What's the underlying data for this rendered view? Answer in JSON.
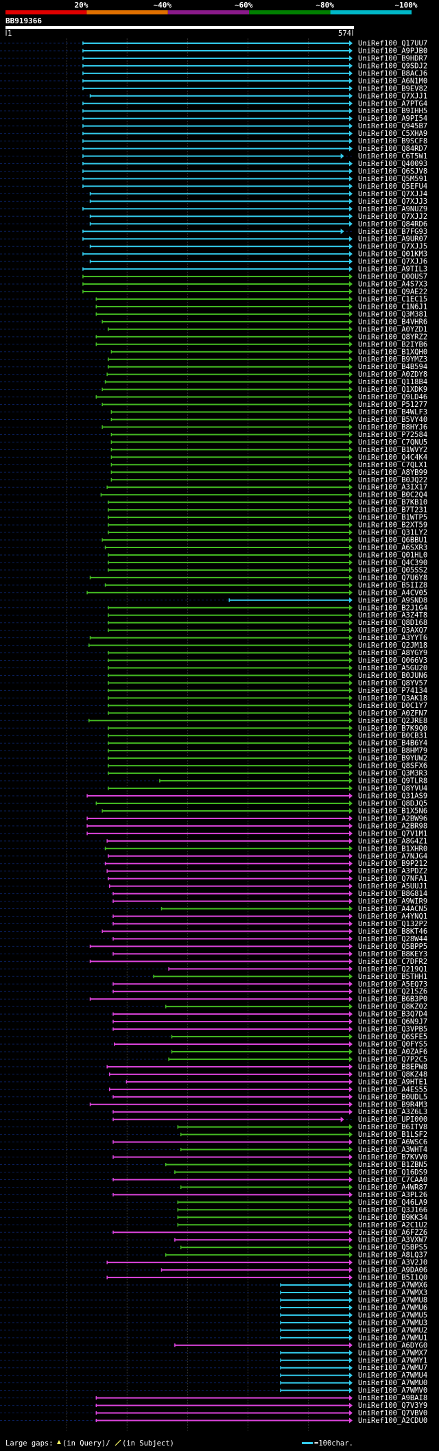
{
  "chart_data": {
    "type": "alignment-overview",
    "title": "BB919366",
    "query_start_label": "1",
    "query_end_label": "574",
    "query_length": 574,
    "identity_scale": [
      {
        "label": "20%",
        "color": "#e00000"
      },
      {
        "label": "~40%",
        "color": "#e07000"
      },
      {
        "label": "~60%",
        "color": "#8a1a8a"
      },
      {
        "label": "~80%",
        "color": "#008000"
      },
      {
        "label": "~100%",
        "color": "#00b8c8"
      }
    ],
    "series_colors": {
      "cyan": "#33ccee",
      "green": "#44bb22",
      "magenta": "#dd44dd"
    },
    "footer": {
      "gaps_label": "Large gaps:",
      "in_query_label": "(in Query)/",
      "in_subject_label": "(in Subject)",
      "scale_label": "=100char."
    },
    "hits": [
      [
        "UniRef100_Q17UU7",
        128,
        574,
        "c"
      ],
      [
        "UniRef100_A9PJB0",
        128,
        574,
        "c"
      ],
      [
        "UniRef100_B9HDR7",
        128,
        574,
        "c"
      ],
      [
        "UniRef100_Q9SDJ2",
        128,
        574,
        "c"
      ],
      [
        "UniRef100_B8ACJ6",
        128,
        574,
        "c"
      ],
      [
        "UniRef100_A6N1M0",
        128,
        574,
        "c"
      ],
      [
        "UniRef100_B9EV82",
        128,
        574,
        "c"
      ],
      [
        "UniRef100_Q7XJJ1",
        140,
        574,
        "c"
      ],
      [
        "UniRef100_A7PTG4",
        128,
        574,
        "c"
      ],
      [
        "UniRef100_B9IHH5",
        128,
        574,
        "c"
      ],
      [
        "UniRef100_A9PI54",
        128,
        574,
        "c"
      ],
      [
        "UniRef100_Q945B7",
        128,
        574,
        "c"
      ],
      [
        "UniRef100_C5XHA9",
        128,
        574,
        "c"
      ],
      [
        "UniRef100_B9SCF8",
        128,
        574,
        "c"
      ],
      [
        "UniRef100_Q84RD7",
        128,
        574,
        "c"
      ],
      [
        "UniRef100_C6T5W1",
        128,
        560,
        "c"
      ],
      [
        "UniRef100_Q40093",
        128,
        574,
        "c"
      ],
      [
        "UniRef100_Q6SJV8",
        128,
        574,
        "c"
      ],
      [
        "UniRef100_Q5M591",
        128,
        574,
        "c"
      ],
      [
        "UniRef100_Q5EFU4",
        128,
        574,
        "c"
      ],
      [
        "UniRef100_Q7XJJ4",
        140,
        574,
        "c"
      ],
      [
        "UniRef100_Q7XJJ3",
        140,
        574,
        "c"
      ],
      [
        "UniRef100_A9NUZ9",
        128,
        574,
        "c"
      ],
      [
        "UniRef100_Q7XJJ2",
        140,
        574,
        "c"
      ],
      [
        "UniRef100_Q84RD6",
        140,
        574,
        "c"
      ],
      [
        "UniRef100_B7FG93",
        128,
        560,
        "c"
      ],
      [
        "UniRef100_A9UR07",
        128,
        574,
        "c"
      ],
      [
        "UniRef100_Q7XJJ5",
        140,
        574,
        "c"
      ],
      [
        "UniRef100_Q01KM3",
        128,
        574,
        "c"
      ],
      [
        "UniRef100_Q7XJJ6",
        140,
        574,
        "c"
      ],
      [
        "UniRef100_A9TIL3",
        128,
        574,
        "c"
      ],
      [
        "UniRef100_Q0OUS7",
        128,
        574,
        "g"
      ],
      [
        "UniRef100_A4S7X3",
        128,
        574,
        "g"
      ],
      [
        "UniRef100_Q9AE22",
        128,
        574,
        "g"
      ],
      [
        "UniRef100_C1EC15",
        150,
        574,
        "g"
      ],
      [
        "UniRef100_C1N6J1",
        150,
        574,
        "g"
      ],
      [
        "UniRef100_Q3M381",
        150,
        574,
        "g"
      ],
      [
        "UniRef100_B4VHR6",
        160,
        574,
        "g"
      ],
      [
        "UniRef100_A0YZD1",
        170,
        574,
        "g"
      ],
      [
        "UniRef100_Q8YRZ2",
        150,
        574,
        "g"
      ],
      [
        "UniRef100_B2IYB6",
        150,
        574,
        "g"
      ],
      [
        "UniRef100_B1XQH0",
        175,
        574,
        "g"
      ],
      [
        "UniRef100_B9YMZ3",
        170,
        574,
        "g"
      ],
      [
        "UniRef100_B4B594",
        170,
        574,
        "g"
      ],
      [
        "UniRef100_A0ZDY8",
        168,
        574,
        "g"
      ],
      [
        "UniRef100_Q118B4",
        165,
        574,
        "g"
      ],
      [
        "UniRef100_Q1XDK9",
        160,
        574,
        "g"
      ],
      [
        "UniRef100_Q9LD46",
        150,
        574,
        "g"
      ],
      [
        "UniRef100_P51277",
        160,
        574,
        "g"
      ],
      [
        "UniRef100_B4WLF3",
        175,
        574,
        "g"
      ],
      [
        "UniRef100_B5VY40",
        175,
        574,
        "g"
      ],
      [
        "UniRef100_B8HYJ6",
        160,
        574,
        "g"
      ],
      [
        "UniRef100_P72584",
        175,
        574,
        "g"
      ],
      [
        "UniRef100_C7QNU5",
        175,
        574,
        "g"
      ],
      [
        "UniRef100_B1WVY2",
        175,
        574,
        "g"
      ],
      [
        "UniRef100_Q4C4K4",
        175,
        574,
        "g"
      ],
      [
        "UniRef100_C7QLX1",
        175,
        574,
        "g"
      ],
      [
        "UniRef100_A8YB99",
        175,
        574,
        "g"
      ],
      [
        "UniRef100_B0JQ22",
        175,
        574,
        "g"
      ],
      [
        "UniRef100_A3IX17",
        168,
        574,
        "g"
      ],
      [
        "UniRef100_B0C2Q4",
        158,
        574,
        "g"
      ],
      [
        "UniRef100_B7KB10",
        170,
        574,
        "g"
      ],
      [
        "UniRef100_B7T231",
        170,
        574,
        "g"
      ],
      [
        "UniRef100_B1WTP5",
        170,
        574,
        "g"
      ],
      [
        "UniRef100_B2XT59",
        170,
        574,
        "g"
      ],
      [
        "UniRef100_Q31LY2",
        170,
        574,
        "g"
      ],
      [
        "UniRef100_Q6BBU1",
        160,
        574,
        "g"
      ],
      [
        "UniRef100_A6SXR3",
        165,
        574,
        "g"
      ],
      [
        "UniRef100_Q01HL0",
        170,
        574,
        "g"
      ],
      [
        "UniRef100_Q4C390",
        170,
        574,
        "g"
      ],
      [
        "UniRef100_Q05SS2",
        170,
        574,
        "g"
      ],
      [
        "UniRef100_Q7U6Y8",
        140,
        574,
        "g"
      ],
      [
        "UniRef100_B5IIZ8",
        165,
        574,
        "g"
      ],
      [
        "UniRef100_A4CV05",
        135,
        574,
        "g"
      ],
      [
        "UniRef100_A9SND8",
        370,
        574,
        "c"
      ],
      [
        "UniRef100_B2J1G4",
        170,
        574,
        "g"
      ],
      [
        "UniRef100_A3Z4T8",
        170,
        574,
        "g"
      ],
      [
        "UniRef100_Q8D168",
        170,
        574,
        "g"
      ],
      [
        "UniRef100_Q3AXQ7",
        170,
        574,
        "g"
      ],
      [
        "UniRef100_A3YYT6",
        140,
        574,
        "g"
      ],
      [
        "UniRef100_Q2JM18",
        138,
        574,
        "g"
      ],
      [
        "UniRef100_A8YGY9",
        170,
        574,
        "g"
      ],
      [
        "UniRef100_Q066V3",
        170,
        574,
        "g"
      ],
      [
        "UniRef100_A5GU20",
        170,
        574,
        "g"
      ],
      [
        "UniRef100_B0JUN6",
        170,
        574,
        "g"
      ],
      [
        "UniRef100_Q8YV57",
        170,
        574,
        "g"
      ],
      [
        "UniRef100_P74134",
        170,
        574,
        "g"
      ],
      [
        "UniRef100_Q3AK18",
        170,
        574,
        "g"
      ],
      [
        "UniRef100_D0C1Y7",
        170,
        574,
        "g"
      ],
      [
        "UniRef100_A0ZFN7",
        170,
        574,
        "g"
      ],
      [
        "UniRef100_Q2JRE8",
        138,
        574,
        "g"
      ],
      [
        "UniRef100_B7K9Q0",
        170,
        574,
        "g"
      ],
      [
        "UniRef100_B0CB31",
        170,
        574,
        "g"
      ],
      [
        "UniRef100_B4B6Y4",
        170,
        574,
        "g"
      ],
      [
        "UniRef100_B8HM79",
        170,
        574,
        "g"
      ],
      [
        "UniRef100_B9YUW2",
        170,
        574,
        "g"
      ],
      [
        "UniRef100_Q8SFX6",
        170,
        574,
        "g"
      ],
      [
        "UniRef100_Q3M3R3",
        170,
        574,
        "g"
      ],
      [
        "UniRef100_Q9TLR8",
        255,
        574,
        "g"
      ],
      [
        "UniRef100_Q8YVU4",
        170,
        574,
        "g"
      ],
      [
        "UniRef100_Q31AS9",
        135,
        574,
        "m"
      ],
      [
        "UniRef100_Q8DJQ5",
        150,
        574,
        "g"
      ],
      [
        "UniRef100_B1X5N6",
        160,
        574,
        "g"
      ],
      [
        "UniRef100_A2BW96",
        135,
        574,
        "m"
      ],
      [
        "UniRef100_A2BR98",
        135,
        574,
        "m"
      ],
      [
        "UniRef100_Q7V1M1",
        135,
        574,
        "m"
      ],
      [
        "UniRef100_A8G4Z1",
        168,
        574,
        "m"
      ],
      [
        "UniRef100_B1XHR0",
        165,
        574,
        "g"
      ],
      [
        "UniRef100_A7NJG4",
        170,
        574,
        "m"
      ],
      [
        "UniRef100_B9P212",
        165,
        574,
        "m"
      ],
      [
        "UniRef100_A3PDZ2",
        168,
        574,
        "m"
      ],
      [
        "UniRef100_Q7NFA1",
        170,
        574,
        "m"
      ],
      [
        "UniRef100_A5UUJ1",
        172,
        574,
        "m"
      ],
      [
        "UniRef100_B8G814",
        178,
        574,
        "m"
      ],
      [
        "UniRef100_A9WIR9",
        178,
        574,
        "m"
      ],
      [
        "UniRef100_A4ACN5",
        258,
        574,
        "g"
      ],
      [
        "UniRef100_A4YNQ1",
        178,
        574,
        "m"
      ],
      [
        "UniRef100_Q132P2",
        178,
        574,
        "m"
      ],
      [
        "UniRef100_B8KT46",
        160,
        574,
        "m"
      ],
      [
        "UniRef100_Q28W44",
        178,
        574,
        "m"
      ],
      [
        "UniRef100_Q5BPP5",
        140,
        574,
        "m"
      ],
      [
        "UniRef100_B8KEY3",
        178,
        574,
        "m"
      ],
      [
        "UniRef100_C7DFR2",
        140,
        574,
        "m"
      ],
      [
        "UniRef100_Q219Q1",
        270,
        574,
        "m"
      ],
      [
        "UniRef100_B5THH1",
        245,
        574,
        "g"
      ],
      [
        "UniRef100_A5EQ73",
        178,
        574,
        "m"
      ],
      [
        "UniRef100_Q21SZ6",
        178,
        574,
        "m"
      ],
      [
        "UniRef100_B6B3P0",
        140,
        574,
        "m"
      ],
      [
        "UniRef100_Q8KZ02",
        265,
        574,
        "g"
      ],
      [
        "UniRef100_B3Q7D4",
        178,
        574,
        "m"
      ],
      [
        "UniRef100_Q6N9J7",
        178,
        574,
        "m"
      ],
      [
        "UniRef100_Q3VPB5",
        178,
        574,
        "m"
      ],
      [
        "UniRef100_Q6SFE5",
        275,
        574,
        "g"
      ],
      [
        "UniRef100_Q0FYS5",
        180,
        574,
        "m"
      ],
      [
        "UniRef100_A0ZAF6",
        275,
        574,
        "g"
      ],
      [
        "UniRef100_Q7P2C5",
        270,
        574,
        "g"
      ],
      [
        "UniRef100_B8EPW8",
        168,
        574,
        "m"
      ],
      [
        "UniRef100_Q8KZ48",
        172,
        574,
        "m"
      ],
      [
        "UniRef100_A9HTE1",
        200,
        574,
        "m"
      ],
      [
        "UniRef100_A4ES55",
        172,
        574,
        "m"
      ],
      [
        "UniRef100_B0UDL5",
        178,
        574,
        "m"
      ],
      [
        "UniRef100_B9R4M3",
        140,
        574,
        "m"
      ],
      [
        "UniRef100_A3Z6L3",
        178,
        574,
        "m"
      ],
      [
        "UniRef100_UPI000",
        178,
        560,
        "m"
      ],
      [
        "UniRef100_B6ITV8",
        285,
        574,
        "g"
      ],
      [
        "UniRef100_B1LSF2",
        290,
        574,
        "g"
      ],
      [
        "UniRef100_A6WSC6",
        178,
        574,
        "m"
      ],
      [
        "UniRef100_A3WHT4",
        290,
        574,
        "g"
      ],
      [
        "UniRef100_B7KVV0",
        178,
        574,
        "m"
      ],
      [
        "UniRef100_B1ZBN5",
        265,
        574,
        "g"
      ],
      [
        "UniRef100_Q16DS9",
        280,
        574,
        "g"
      ],
      [
        "UniRef100_C7CAA0",
        178,
        574,
        "m"
      ],
      [
        "UniRef100_A4WR87",
        290,
        574,
        "g"
      ],
      [
        "UniRef100_A3PL26",
        178,
        574,
        "m"
      ],
      [
        "UniRef100_Q46LA9",
        285,
        574,
        "g"
      ],
      [
        "UniRef100_Q3J166",
        285,
        574,
        "g"
      ],
      [
        "UniRef100_B9KK34",
        285,
        574,
        "g"
      ],
      [
        "UniRef100_A2C1U2",
        285,
        574,
        "g"
      ],
      [
        "UniRef100_A6FZZ6",
        178,
        574,
        "m"
      ],
      [
        "UniRef100_A3VXW7",
        280,
        574,
        "m"
      ],
      [
        "UniRef100_Q5BPS5",
        290,
        574,
        "g"
      ],
      [
        "UniRef100_A8LQ37",
        265,
        574,
        "g"
      ],
      [
        "UniRef100_A3V2J0",
        168,
        574,
        "m"
      ],
      [
        "UniRef100_A9DA06",
        258,
        574,
        "m"
      ],
      [
        "UniRef100_B5I1Q0",
        168,
        574,
        "m"
      ],
      [
        "UniRef100_A7WMX6",
        455,
        574,
        "c"
      ],
      [
        "UniRef100_A7WMX3",
        455,
        574,
        "c"
      ],
      [
        "UniRef100_A7WMU8",
        455,
        574,
        "c"
      ],
      [
        "UniRef100_A7WMU6",
        455,
        574,
        "c"
      ],
      [
        "UniRef100_A7WMU5",
        455,
        574,
        "c"
      ],
      [
        "UniRef100_A7WMU3",
        455,
        574,
        "c"
      ],
      [
        "UniRef100_A7WMU2",
        455,
        574,
        "c"
      ],
      [
        "UniRef100_A7WMU1",
        455,
        574,
        "c"
      ],
      [
        "UniRef100_A6DYG0",
        280,
        574,
        "m"
      ],
      [
        "UniRef100_A7WMX7",
        455,
        574,
        "c"
      ],
      [
        "UniRef100_A7WMY1",
        455,
        574,
        "c"
      ],
      [
        "UniRef100_A7WMU7",
        455,
        574,
        "c"
      ],
      [
        "UniRef100_A7WMU4",
        455,
        574,
        "c"
      ],
      [
        "UniRef100_A7WMU0",
        455,
        574,
        "c"
      ],
      [
        "UniRef100_A7WMV0",
        455,
        574,
        "c"
      ],
      [
        "UniRef100_A9BAI8",
        150,
        574,
        "m"
      ],
      [
        "UniRef100_Q7V3Y9",
        150,
        574,
        "m"
      ],
      [
        "UniRef100_Q7VBV0",
        150,
        574,
        "m"
      ],
      [
        "UniRef100_A2CDU0",
        150,
        574,
        "m"
      ]
    ]
  }
}
